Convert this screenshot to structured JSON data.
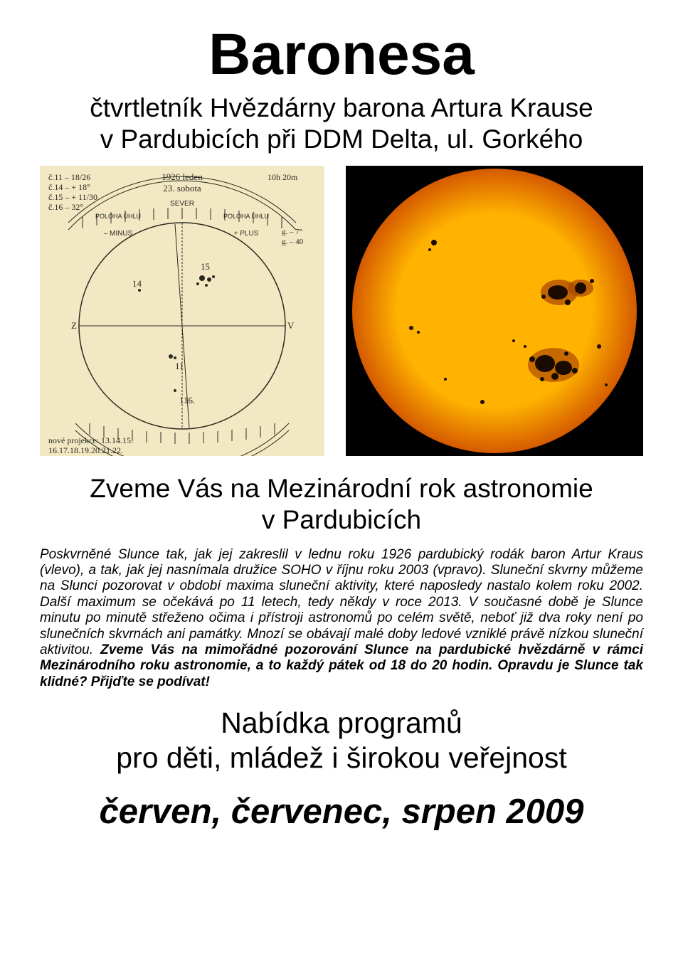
{
  "title": "Baronesa",
  "subtitle": "čtvrtletník Hvězdárny barona Artura Krause\nv Pardubicích při DDM Delta, ul. Gorkého",
  "heading2": "Zveme Vás na Mezinárodní rok astronomie\nv Pardubicích",
  "body_italic": "Poskvrněné Slunce tak, jak jej zakreslil v lednu roku 1926 pardubický rodák baron Artur Kraus (vlevo), a tak, jak jej nasnímala družice SOHO v říjnu roku 2003 (vpravo). Sluneční skvrny můžeme na Slunci pozorovat v období maxima sluneční aktivity, které naposledy nastalo kolem roku 2002. Další maximum se očekává po 11 letech, tedy někdy v roce 2013. V současné době je Slunce minutu po minutě střeženo očima i přístroji astronomů po celém světě, neboť již dva roky není po slunečních skvrnách ani památky. Mnozí se obávají malé doby ledové vzniklé právě nízkou sluneční aktivitou. ",
  "body_bold": "Zveme Vás na mimořádné pozorování Slunce na pardubické hvězdárně v rámci Mezinárodního roku astronomie, a to každý pátek od 18 do 20 hodin. Opravdu je Slunce tak klidné? Přijďte se podívat!",
  "heading3": "Nabídka programů\npro děti, mládež i širokou veřejnost",
  "date_line": "červen, červenec, srpen 2009",
  "sketch": {
    "bg": "#f2e8c3",
    "circle_stroke": "#2a2a20",
    "text_color": "#2a2a20",
    "top_label_left": "č.11 – 18/26",
    "top_label_mid": "1926 leden\n23. sobota",
    "top_label_right": "10h 20m",
    "tick_top": "SEVER",
    "tick_left": "– MINUS",
    "tick_right": "+ PLUS",
    "mark_z": "Z",
    "mark_v": "V",
    "spot_labels": [
      "14",
      "15",
      "11",
      "116."
    ],
    "bottom_note": "nové projekce: 13.14.15.\n16.17.18.19.20.21.22."
  },
  "sun": {
    "bg": "#000000",
    "disc_center": "#ffb300",
    "disc_edge": "#d55a00",
    "spot": "#1a0a00",
    "penumbra": "#a84400"
  }
}
